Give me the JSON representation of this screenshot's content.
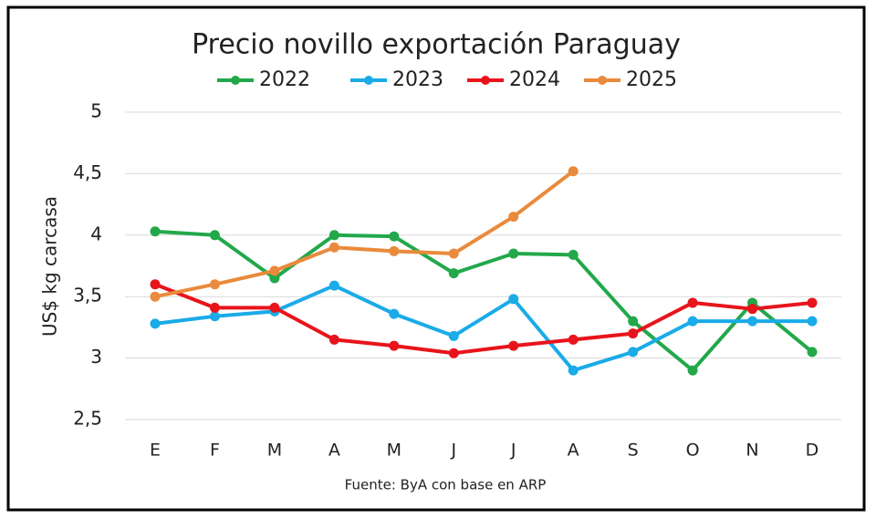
{
  "chart_data": {
    "type": "line",
    "title": "Precio novillo exportación Paraguay",
    "y_label": "US$ kg carcasa",
    "source": "Fuente: ByA con base en ARP",
    "categories": [
      "E",
      "F",
      "M",
      "A",
      "M",
      "J",
      "J",
      "A",
      "S",
      "O",
      "N",
      "D"
    ],
    "series": [
      {
        "name": "2022",
        "color": "#22a84a",
        "values": [
          4.03,
          4.0,
          3.65,
          4.0,
          3.99,
          3.69,
          3.85,
          3.84,
          3.3,
          2.9,
          3.45,
          3.05
        ]
      },
      {
        "name": "2023",
        "color": "#1aabe8",
        "values": [
          3.28,
          3.34,
          3.38,
          3.59,
          3.36,
          3.18,
          3.48,
          2.9,
          3.05,
          3.3,
          3.3,
          3.3
        ]
      },
      {
        "name": "2024",
        "color": "#e8141b",
        "values": [
          3.6,
          3.41,
          3.41,
          3.15,
          3.1,
          3.04,
          3.1,
          3.15,
          3.2,
          3.45,
          3.4,
          3.45
        ]
      },
      {
        "name": "2025",
        "color": "#ea8a3c",
        "values": [
          3.5,
          3.6,
          3.71,
          3.9,
          3.87,
          3.85,
          4.15,
          4.52,
          null,
          null,
          null,
          null
        ]
      }
    ],
    "ylim": [
      2.5,
      5
    ],
    "yticks": [
      {
        "value": 2.5,
        "label": "2,5"
      },
      3,
      {
        "value": 3.5,
        "label": "3,5"
      },
      4,
      {
        "value": 4.5,
        "label": "4,5"
      },
      5
    ],
    "grid": true,
    "legend": "top"
  }
}
